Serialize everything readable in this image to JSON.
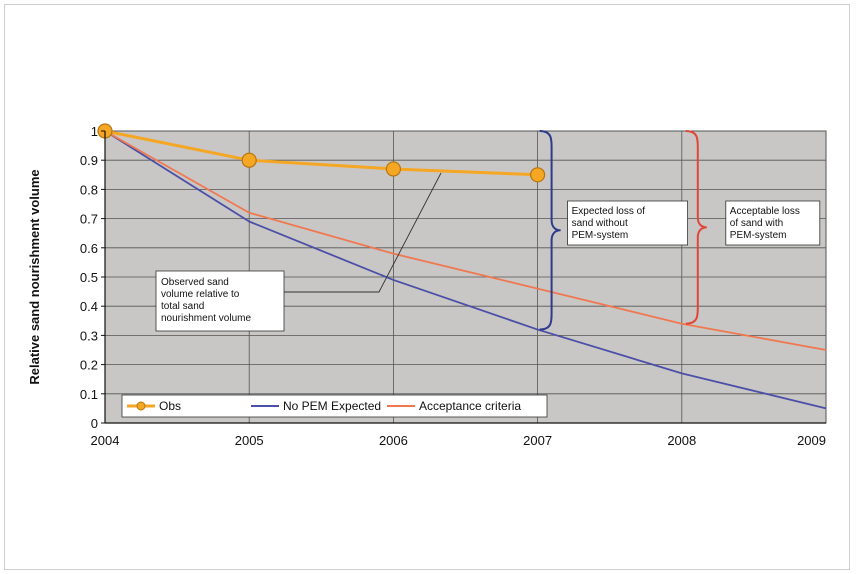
{
  "chart_data": {
    "type": "line",
    "ylabel": "Relative sand nourishment volume",
    "xlabel": "",
    "xlim": [
      2004,
      2009
    ],
    "ylim": [
      0,
      1
    ],
    "x_ticks": [
      "2004",
      "2005",
      "2006",
      "2007",
      "2008",
      "2009"
    ],
    "y_ticks": [
      "0",
      "0.1",
      "0.2",
      "0.3",
      "0.4",
      "0.5",
      "0.6",
      "0.7",
      "0.8",
      "0.9",
      "1"
    ],
    "grid": true,
    "legend_position": "bottom-left",
    "series": [
      {
        "name": "Obs",
        "color": "#f5a623",
        "marker": "circle",
        "points": [
          [
            2004,
            1.0
          ],
          [
            2005,
            0.9
          ],
          [
            2006,
            0.87
          ],
          [
            2007,
            0.85
          ]
        ]
      },
      {
        "name": "No PEM Expected",
        "color": "#4b4fa8",
        "points": [
          [
            2004,
            1.0
          ],
          [
            2005,
            0.69
          ],
          [
            2006,
            0.49
          ],
          [
            2007,
            0.32
          ],
          [
            2008,
            0.17
          ],
          [
            2009,
            0.05
          ]
        ]
      },
      {
        "name": "Acceptance criteria",
        "color": "#f07850",
        "points": [
          [
            2004,
            1.0
          ],
          [
            2005,
            0.72
          ],
          [
            2006,
            0.58
          ],
          [
            2007,
            0.46
          ],
          [
            2008,
            0.34
          ],
          [
            2009,
            0.25
          ]
        ]
      }
    ],
    "annotations": [
      {
        "id": "observed",
        "lines": [
          "Observed sand",
          "volume relative to",
          "total sand",
          "nourishment volume"
        ]
      },
      {
        "id": "expected",
        "lines": [
          "Expected loss of",
          "sand without",
          "PEM-system"
        ],
        "color": "#2e3a8c"
      },
      {
        "id": "acceptable",
        "lines": [
          "Acceptable loss",
          "of sand with",
          "PEM-system"
        ],
        "color": "#e0463a"
      }
    ]
  }
}
